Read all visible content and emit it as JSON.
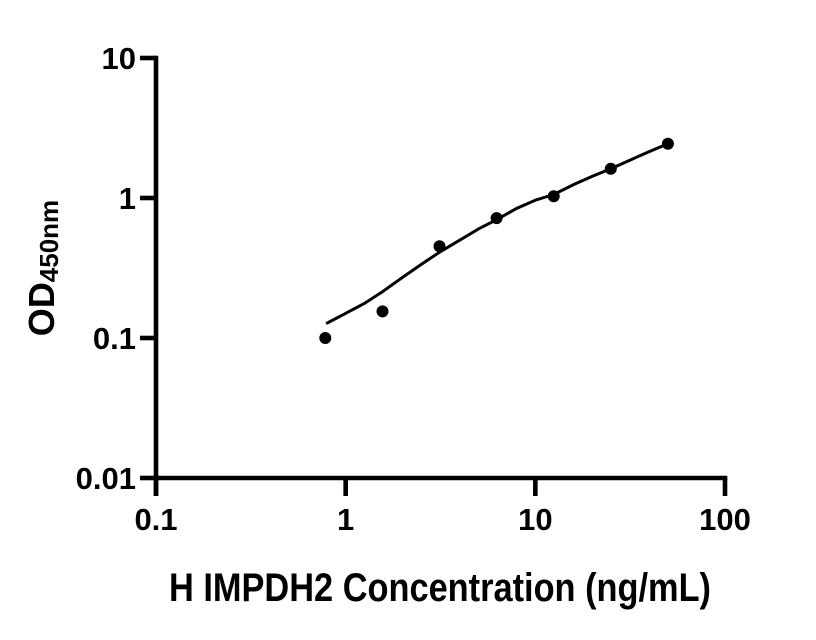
{
  "figure": {
    "background_color": "#ffffff",
    "ink_color": "#000000"
  },
  "chart_data": {
    "type": "scatter",
    "title": "",
    "xlabel": "H IMPDH2 Concentration (ng/mL)",
    "ylabel_main": "OD",
    "ylabel_sub": "450nm",
    "x_scale": "log",
    "y_scale": "log",
    "xlim": [
      0.1,
      100
    ],
    "ylim": [
      0.01,
      10
    ],
    "grid": false,
    "legend": null,
    "marker": "filled-circle",
    "marker_color": "#000000",
    "curve_color": "#000000",
    "x_ticks": [
      {
        "value": 0.1,
        "label": "0.1"
      },
      {
        "value": 1,
        "label": "1"
      },
      {
        "value": 10,
        "label": "10"
      },
      {
        "value": 100,
        "label": "100"
      }
    ],
    "y_ticks": [
      {
        "value": 10,
        "label": "10"
      },
      {
        "value": 1,
        "label": "1"
      },
      {
        "value": 0.1,
        "label": "0.1"
      },
      {
        "value": 0.01,
        "label": "0.01"
      }
    ],
    "points": [
      {
        "x": 0.781,
        "y": 0.1
      },
      {
        "x": 1.563,
        "y": 0.155
      },
      {
        "x": 3.125,
        "y": 0.452
      },
      {
        "x": 6.25,
        "y": 0.718
      },
      {
        "x": 12.5,
        "y": 1.03
      },
      {
        "x": 25,
        "y": 1.62
      },
      {
        "x": 50,
        "y": 2.44
      }
    ],
    "fit_curve": [
      [
        0.8,
        0.128
      ],
      [
        1.0,
        0.15
      ],
      [
        1.25,
        0.176
      ],
      [
        1.563,
        0.214
      ],
      [
        2.0,
        0.272
      ],
      [
        2.5,
        0.335
      ],
      [
        3.125,
        0.41
      ],
      [
        4.0,
        0.5
      ],
      [
        5.0,
        0.6
      ],
      [
        6.25,
        0.7
      ],
      [
        8.0,
        0.845
      ],
      [
        10.0,
        0.965
      ],
      [
        12.5,
        1.06
      ],
      [
        16.0,
        1.25
      ],
      [
        20.0,
        1.43
      ],
      [
        25.0,
        1.62
      ],
      [
        32.0,
        1.88
      ],
      [
        40.0,
        2.15
      ],
      [
        50.0,
        2.44
      ]
    ]
  }
}
